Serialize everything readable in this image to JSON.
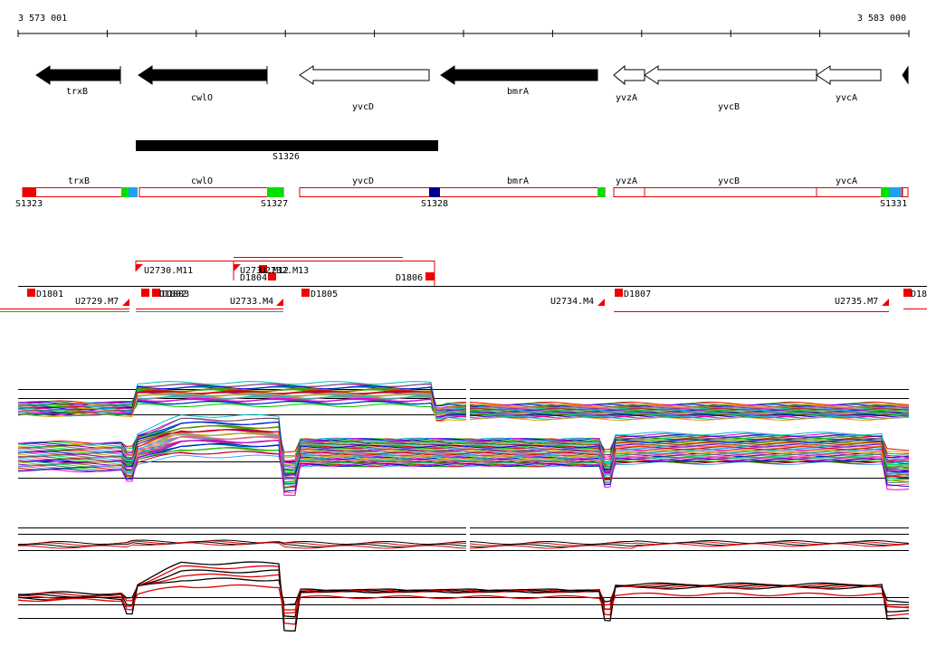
{
  "scale": {
    "start": "3 573 001",
    "end": "3 583 000"
  },
  "genes": [
    "trxB",
    "cwlO",
    "yvcD",
    "bmrA",
    "yvzA",
    "yvcB",
    "yvcA"
  ],
  "segment": "S1326",
  "operon_labels": [
    "trxB",
    "cwlO",
    "yvcD",
    "bmrA",
    "yvzA",
    "yvcB",
    "yvcA"
  ],
  "segment_labels": [
    "S1323",
    "S1327",
    "S1328",
    "S1331"
  ],
  "probes": [
    "U2730.M11",
    "U2731.M12",
    "U2732.M13",
    "D1804",
    "D1806",
    "D1801",
    "U2729.M7",
    "D1802",
    "D1803",
    "U2733.M4",
    "D1805",
    "U2734.M4",
    "D1807",
    "U2735.M7",
    "D18"
  ]
}
